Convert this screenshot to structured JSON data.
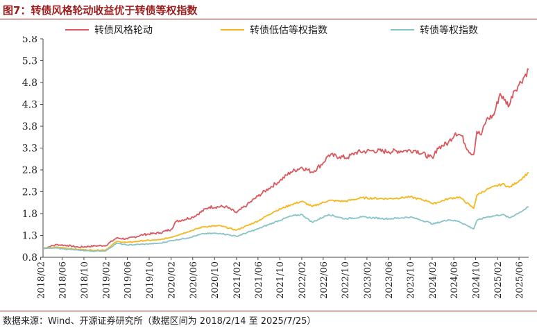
{
  "title": "图7：转债风格轮动收益优于转债等权指数",
  "source": "数据来源：Wind、开源证券研究所（数据区间为 2018/2/14 至 2025/7/25）",
  "colors": {
    "red": "#d9595f",
    "yellow": "#f5b71c",
    "teal": "#86c4c7",
    "brand": "#9b1c1c"
  },
  "chart_data": {
    "type": "line",
    "title": "图7：转债风格轮动收益优于转债等权指数",
    "xlabel": "",
    "ylabel": "",
    "ylim": [
      0.8,
      5.8
    ],
    "yticks": [
      "0.8",
      "1.3",
      "1.8",
      "2.3",
      "2.8",
      "3.3",
      "3.8",
      "4.3",
      "4.8",
      "5.3",
      "5.8"
    ],
    "xlim": [
      "2018/02/14",
      "2025/07/25"
    ],
    "xticks": [
      "2018/02",
      "2018/06",
      "2018/10",
      "2019/02",
      "2019/06",
      "2019/10",
      "2020/02",
      "2020/06",
      "2020/10",
      "2021/02",
      "2021/06",
      "2021/10",
      "2022/02",
      "2022/06",
      "2022/10",
      "2023/02",
      "2023/06",
      "2023/10",
      "2024/02",
      "2024/06",
      "2024/10",
      "2025/02",
      "2025/06"
    ],
    "legend_position": "top",
    "series": [
      {
        "name": "转债风格轮动",
        "color": "#d9595f",
        "points": [
          [
            "2018/02/14",
            1.0
          ],
          [
            "2018/05/01",
            1.09
          ],
          [
            "2018/07/01",
            1.07
          ],
          [
            "2018/09/01",
            1.03
          ],
          [
            "2018/12/01",
            1.06
          ],
          [
            "2019/02/01",
            1.07
          ],
          [
            "2019/04/01",
            1.24
          ],
          [
            "2019/06/01",
            1.22
          ],
          [
            "2019/09/01",
            1.32
          ],
          [
            "2019/12/01",
            1.36
          ],
          [
            "2020/02/01",
            1.44
          ],
          [
            "2020/03/01",
            1.62
          ],
          [
            "2020/06/01",
            1.72
          ],
          [
            "2020/09/01",
            1.95
          ],
          [
            "2020/12/01",
            1.96
          ],
          [
            "2021/02/01",
            1.82
          ],
          [
            "2021/04/01",
            2.0
          ],
          [
            "2021/06/01",
            2.2
          ],
          [
            "2021/08/01",
            2.38
          ],
          [
            "2021/10/01",
            2.55
          ],
          [
            "2021/12/01",
            2.75
          ],
          [
            "2022/02/01",
            2.86
          ],
          [
            "2022/04/01",
            2.75
          ],
          [
            "2022/06/01",
            2.96
          ],
          [
            "2022/07/01",
            3.14
          ],
          [
            "2022/09/01",
            3.1
          ],
          [
            "2022/10/15",
            3.08
          ],
          [
            "2022/12/01",
            3.2
          ],
          [
            "2023/03/01",
            3.24
          ],
          [
            "2023/06/01",
            3.22
          ],
          [
            "2023/09/01",
            3.24
          ],
          [
            "2023/11/01",
            3.25
          ],
          [
            "2024/01/15",
            3.1
          ],
          [
            "2024/02/05",
            3.06
          ],
          [
            "2024/03/01",
            3.3
          ],
          [
            "2024/05/01",
            3.42
          ],
          [
            "2024/06/10",
            3.65
          ],
          [
            "2024/07/15",
            3.58
          ],
          [
            "2024/08/20",
            3.25
          ],
          [
            "2024/09/20",
            3.15
          ],
          [
            "2024/10/08",
            3.68
          ],
          [
            "2024/11/01",
            3.6
          ],
          [
            "2024/12/01",
            3.95
          ],
          [
            "2025/01/10",
            4.05
          ],
          [
            "2025/02/15",
            4.55
          ],
          [
            "2025/03/10",
            4.4
          ],
          [
            "2025/04/08",
            4.28
          ],
          [
            "2025/05/01",
            4.6
          ],
          [
            "2025/06/01",
            4.75
          ],
          [
            "2025/07/25",
            5.1
          ]
        ]
      },
      {
        "name": "转债低估等权指数",
        "color": "#f5b71c",
        "points": [
          [
            "2018/02/14",
            1.0
          ],
          [
            "2018/05/01",
            1.03
          ],
          [
            "2018/09/01",
            0.98
          ],
          [
            "2018/12/01",
            0.96
          ],
          [
            "2019/02/01",
            0.97
          ],
          [
            "2019/04/01",
            1.16
          ],
          [
            "2019/06/01",
            1.14
          ],
          [
            "2019/09/01",
            1.18
          ],
          [
            "2019/12/01",
            1.2
          ],
          [
            "2020/02/01",
            1.26
          ],
          [
            "2020/05/01",
            1.38
          ],
          [
            "2020/08/01",
            1.5
          ],
          [
            "2020/11/01",
            1.52
          ],
          [
            "2021/02/01",
            1.42
          ],
          [
            "2021/06/01",
            1.63
          ],
          [
            "2021/09/01",
            1.85
          ],
          [
            "2021/12/01",
            2.0
          ],
          [
            "2022/02/01",
            2.08
          ],
          [
            "2022/04/01",
            1.96
          ],
          [
            "2022/07/01",
            2.1
          ],
          [
            "2022/10/01",
            2.08
          ],
          [
            "2023/01/01",
            2.16
          ],
          [
            "2023/06/01",
            2.14
          ],
          [
            "2023/10/01",
            2.18
          ],
          [
            "2024/01/15",
            2.08
          ],
          [
            "2024/02/05",
            2.02
          ],
          [
            "2024/05/01",
            2.14
          ],
          [
            "2024/07/01",
            2.18
          ],
          [
            "2024/09/20",
            1.92
          ],
          [
            "2024/10/08",
            2.22
          ],
          [
            "2024/12/01",
            2.35
          ],
          [
            "2025/03/01",
            2.48
          ],
          [
            "2025/04/08",
            2.4
          ],
          [
            "2025/06/01",
            2.55
          ],
          [
            "2025/07/25",
            2.74
          ]
        ]
      },
      {
        "name": "转债等权指数",
        "color": "#86c4c7",
        "points": [
          [
            "2018/02/14",
            1.0
          ],
          [
            "2018/05/01",
            1.01
          ],
          [
            "2018/09/01",
            0.96
          ],
          [
            "2018/12/01",
            0.94
          ],
          [
            "2019/02/01",
            0.95
          ],
          [
            "2019/04/01",
            1.12
          ],
          [
            "2019/06/01",
            1.08
          ],
          [
            "2019/09/01",
            1.1
          ],
          [
            "2019/12/01",
            1.12
          ],
          [
            "2020/02/01",
            1.18
          ],
          [
            "2020/05/01",
            1.24
          ],
          [
            "2020/08/01",
            1.34
          ],
          [
            "2020/11/01",
            1.35
          ],
          [
            "2021/02/01",
            1.28
          ],
          [
            "2021/06/01",
            1.45
          ],
          [
            "2021/09/01",
            1.6
          ],
          [
            "2021/12/01",
            1.74
          ],
          [
            "2022/02/01",
            1.78
          ],
          [
            "2022/04/01",
            1.6
          ],
          [
            "2022/07/01",
            1.78
          ],
          [
            "2022/10/01",
            1.68
          ],
          [
            "2023/01/01",
            1.72
          ],
          [
            "2023/06/01",
            1.68
          ],
          [
            "2023/10/01",
            1.72
          ],
          [
            "2024/01/15",
            1.6
          ],
          [
            "2024/02/05",
            1.56
          ],
          [
            "2024/05/01",
            1.66
          ],
          [
            "2024/07/01",
            1.62
          ],
          [
            "2024/09/20",
            1.45
          ],
          [
            "2024/10/08",
            1.64
          ],
          [
            "2024/12/01",
            1.72
          ],
          [
            "2025/03/01",
            1.78
          ],
          [
            "2025/04/08",
            1.7
          ],
          [
            "2025/06/01",
            1.82
          ],
          [
            "2025/07/25",
            1.95
          ]
        ]
      }
    ]
  }
}
